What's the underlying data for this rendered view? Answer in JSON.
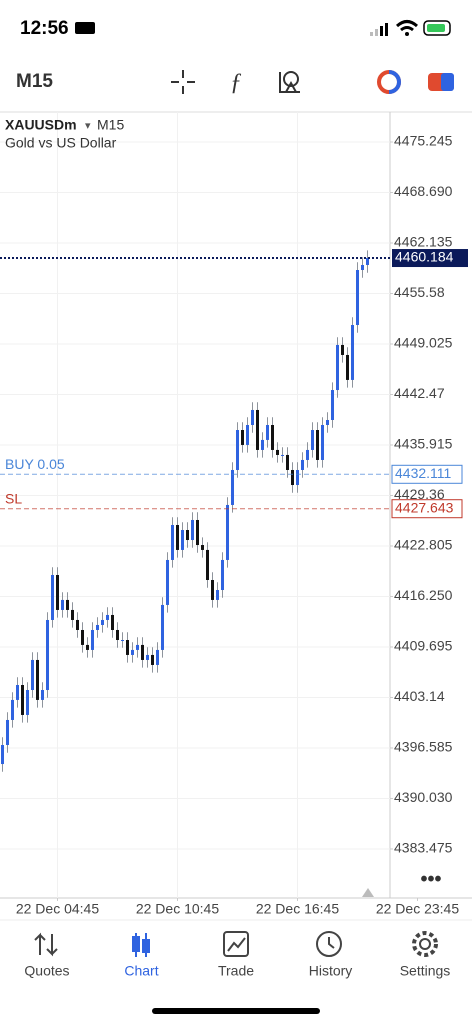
{
  "status_bar": {
    "time": "12:56"
  },
  "toolbar": {
    "timeframe": "M15"
  },
  "chart_data": {
    "type": "candlestick",
    "symbol": "XAUUSDm",
    "timeframe": "M15",
    "description": "Gold vs US Dollar",
    "up_color": "#2f63e0",
    "down_color": "#111111",
    "wick_color": "#8e949c",
    "grid": true,
    "open": [
      4394.5,
      4396.97,
      4400.22,
      4402.82,
      4404.76,
      4400.87,
      4404.11,
      4408.01,
      4402.82,
      4404.11,
      4413.2,
      4419.04,
      4414.5,
      4415.8,
      4414.5,
      4413.2,
      4411.9,
      4409.96,
      4409.31,
      4411.9,
      4412.55,
      4413.2,
      4413.85,
      4411.9,
      4410.6,
      4410.6,
      4408.66,
      4409.31,
      4409.96,
      4408.01,
      4408.66,
      4407.36,
      4409.31,
      4415.15,
      4420.99,
      4425.53,
      4422.29,
      4424.88,
      4423.58,
      4426.18,
      4422.93,
      4422.29,
      4418.39,
      4415.8,
      4417.09,
      4420.99,
      4428.13,
      4432.67,
      4437.86,
      4435.92,
      4438.51,
      4440.46,
      4435.27,
      4436.57,
      4438.51,
      4435.27,
      4434.62,
      4434.62,
      4432.67,
      4430.72,
      4432.67,
      4433.97,
      4435.27,
      4437.86,
      4433.97,
      4438.51,
      4439.16,
      4443.05,
      4448.9,
      4447.6,
      4444.36,
      4451.49,
      4458.63,
      4459.28
    ],
    "high": [
      4397.97,
      4401.22,
      4403.82,
      4405.76,
      4405.76,
      4405.11,
      4409.01,
      4409.01,
      4405.11,
      4414.2,
      4420.04,
      4420.04,
      4416.8,
      4416.8,
      4415.5,
      4414.2,
      4412.9,
      4410.96,
      4412.9,
      4413.55,
      4414.2,
      4414.85,
      4414.85,
      4412.9,
      4411.6,
      4411.6,
      4410.31,
      4410.96,
      4410.96,
      4409.66,
      4409.66,
      4410.31,
      4416.15,
      4421.99,
      4426.53,
      4426.53,
      4425.88,
      4425.88,
      4427.18,
      4427.18,
      4423.93,
      4423.29,
      4419.39,
      4418.09,
      4421.99,
      4429.13,
      4433.67,
      4438.86,
      4438.86,
      4439.51,
      4441.46,
      4441.46,
      4437.57,
      4439.51,
      4439.51,
      4436.27,
      4435.62,
      4435.62,
      4433.67,
      4433.67,
      4434.97,
      4436.27,
      4438.86,
      4438.86,
      4439.51,
      4440.16,
      4444.05,
      4449.9,
      4449.9,
      4448.6,
      4452.49,
      4459.63,
      4460.28,
      4461.18
    ],
    "low": [
      4393.5,
      4395.97,
      4399.22,
      4401.82,
      4399.87,
      4399.87,
      4403.11,
      4401.82,
      4401.82,
      4403.11,
      4412.2,
      4413.5,
      4413.5,
      4413.5,
      4412.2,
      4410.9,
      4408.96,
      4408.31,
      4408.31,
      4410.9,
      4411.55,
      4412.2,
      4410.9,
      4409.6,
      4409.6,
      4407.66,
      4407.66,
      4408.31,
      4407.01,
      4407.01,
      4406.36,
      4406.36,
      4408.31,
      4414.15,
      4419.99,
      4421.29,
      4421.29,
      4422.58,
      4422.58,
      4421.93,
      4421.29,
      4417.39,
      4414.8,
      4414.8,
      4416.09,
      4419.99,
      4427.13,
      4431.67,
      4434.92,
      4434.92,
      4437.51,
      4434.27,
      4434.27,
      4435.57,
      4434.27,
      4433.62,
      4433.62,
      4431.67,
      4429.72,
      4429.72,
      4431.67,
      4432.97,
      4434.27,
      4432.97,
      4432.97,
      4437.51,
      4438.16,
      4442.05,
      4446.6,
      4443.36,
      4443.36,
      4450.49,
      4457.63,
      4458.28
    ],
    "close": [
      4396.97,
      4400.22,
      4402.82,
      4404.76,
      4400.87,
      4404.11,
      4408.01,
      4402.82,
      4404.11,
      4413.2,
      4419.04,
      4414.5,
      4415.8,
      4414.5,
      4413.2,
      4411.9,
      4409.96,
      4409.31,
      4411.9,
      4412.55,
      4413.2,
      4413.85,
      4411.9,
      4410.6,
      4410.6,
      4408.66,
      4409.31,
      4409.96,
      4408.01,
      4408.66,
      4407.36,
      4409.31,
      4415.15,
      4420.99,
      4425.53,
      4422.29,
      4424.88,
      4423.58,
      4426.18,
      4422.93,
      4422.29,
      4418.39,
      4415.8,
      4417.09,
      4420.99,
      4428.13,
      4432.67,
      4437.86,
      4435.92,
      4438.51,
      4440.46,
      4435.27,
      4436.57,
      4438.51,
      4435.27,
      4434.62,
      4434.62,
      4432.67,
      4430.72,
      4432.67,
      4433.97,
      4435.27,
      4437.86,
      4433.97,
      4438.51,
      4439.16,
      4443.05,
      4448.9,
      4447.6,
      4444.36,
      4451.49,
      4458.63,
      4459.28,
      4460.184
    ],
    "ylim": [
      4377.11,
      4479.14
    ],
    "yticks": [
      4475.245,
      {
        "value": 4468.69,
        "label": "4468.690"
      },
      4462.135,
      4455.58,
      4449.025,
      4442.47,
      4435.915,
      4429.36,
      4422.805,
      {
        "value": 4416.25,
        "label": "4416.250"
      },
      4409.695,
      4403.14,
      4396.585,
      {
        "value": 4390.03,
        "label": "4390.030"
      },
      4383.475
    ],
    "xlim": [
      -0.5,
      77.5
    ],
    "xticks": [
      {
        "value": 11,
        "label": "22 Dec 04:45"
      },
      {
        "value": 35,
        "label": "22 Dec 10:45"
      },
      {
        "value": 59,
        "label": "22 Dec 16:45"
      },
      {
        "value": 83,
        "label": "22 Dec 23:45"
      }
    ],
    "current_price": {
      "value": 4460.184,
      "color": "#0b1a5a"
    },
    "price_lines": [
      {
        "label": "BUY 0.05",
        "value": 4432.111,
        "color": "#4a86d8"
      },
      {
        "label": "SL",
        "value": 4427.643,
        "color": "#c0392b"
      }
    ]
  },
  "tab_bar": {
    "active": 1,
    "active_color": "#2f63e0",
    "tabs": [
      "Quotes",
      "Chart",
      "Trade",
      "History",
      "Settings"
    ]
  }
}
